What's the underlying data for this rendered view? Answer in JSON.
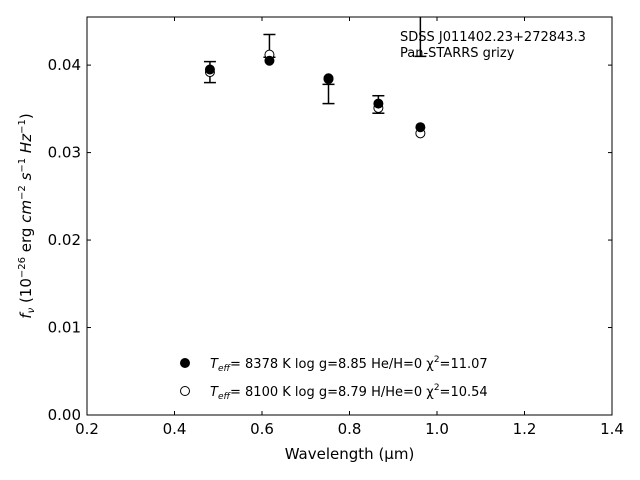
{
  "chart_data": {
    "type": "scatter",
    "title": "",
    "xlabel": "Wavelength (μm)",
    "ylabel_parts": [
      "f",
      "ν",
      " (10",
      "−26",
      " erg ",
      "cm",
      "−2",
      " ",
      "s",
      "−1",
      " ",
      "Hz",
      "−1",
      ")"
    ],
    "xlim": [
      0.2,
      1.4
    ],
    "ylim": [
      0.0,
      0.0455
    ],
    "xticks": [
      0.2,
      0.4,
      0.6,
      0.8,
      1.0,
      1.2,
      1.4
    ],
    "xtick_labels": [
      "0.2",
      "0.4",
      "0.6",
      "0.8",
      "1.0",
      "1.2",
      "1.4"
    ],
    "yticks": [
      0.0,
      0.01,
      0.02,
      0.03,
      0.04
    ],
    "ytick_labels": [
      "0.00",
      "0.01",
      "0.02",
      "0.03",
      "0.04"
    ],
    "grid": false,
    "annotation": [
      "SDSS J011402.23+272843.3",
      "Pan-STARRS grizy"
    ],
    "observed": {
      "x": [
        0.481,
        0.617,
        0.752,
        0.866,
        0.962
      ],
      "y": [
        0.0392,
        0.0422,
        0.0367,
        0.0355,
        0.0455
      ],
      "yerr": [
        0.0012,
        0.0013,
        0.0011,
        0.001,
        0.0045
      ]
    },
    "series": [
      {
        "marker": "filled",
        "x": [
          0.481,
          0.617,
          0.752,
          0.866,
          0.962
        ],
        "y": [
          0.0395,
          0.0405,
          0.0385,
          0.0356,
          0.0329
        ],
        "legend_parts": [
          "T",
          "eff",
          "=  8378 K  log g=8.85  He/H=0  χ",
          "2",
          "=11.07"
        ]
      },
      {
        "marker": "open",
        "x": [
          0.481,
          0.617,
          0.752,
          0.866,
          0.962
        ],
        "y": [
          0.0392,
          0.0412,
          0.0384,
          0.0351,
          0.0322
        ],
        "legend_parts": [
          "T",
          "eff",
          "=  8100 K  log g=8.79  H/He=0  χ",
          "2",
          "=10.54"
        ]
      }
    ],
    "colors": {
      "marker": "#000000",
      "background": "#ffffff"
    }
  }
}
